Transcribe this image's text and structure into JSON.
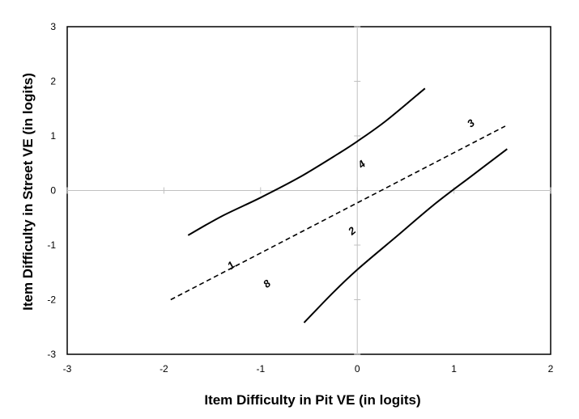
{
  "chart_data": {
    "type": "scatter",
    "xlabel": "Item Difficulty in Pit VE (in logits)",
    "ylabel": "Item Difficulty in Street VE (in logits)",
    "xlim": [
      -3,
      2
    ],
    "ylim": [
      -3,
      3
    ],
    "x_ticks": [
      "-3",
      "-2",
      "-1",
      "0",
      "1",
      "2"
    ],
    "y_ticks": [
      "-3",
      "-2",
      "-1",
      "0",
      "1",
      "2",
      "3"
    ],
    "grid": false,
    "legend": "none",
    "points": [
      {
        "label": "1",
        "x": -1.3,
        "y": -1.38,
        "rotation": -40
      },
      {
        "label": "8",
        "x": -0.93,
        "y": -1.72,
        "rotation": -40
      },
      {
        "label": "2",
        "x": -0.05,
        "y": -0.75,
        "rotation": -40
      },
      {
        "label": "4",
        "x": 0.05,
        "y": 0.47,
        "rotation": -40
      },
      {
        "label": "3",
        "x": 1.18,
        "y": 1.22,
        "rotation": -40
      }
    ],
    "series": [
      {
        "style": "solid",
        "x": [
          -1.75,
          -1.4,
          -1.0,
          -0.6,
          -0.2,
          0.0,
          0.3,
          0.7
        ],
        "y": [
          -0.82,
          -0.47,
          -0.13,
          0.24,
          0.67,
          0.9,
          1.28,
          1.87
        ]
      },
      {
        "style": "dashed",
        "x": [
          -1.93,
          1.53
        ],
        "y": [
          -2.0,
          1.18
        ]
      },
      {
        "style": "solid",
        "x": [
          -0.55,
          -0.25,
          0.0,
          0.4,
          0.8,
          1.2,
          1.55
        ],
        "y": [
          -2.42,
          -1.87,
          -1.45,
          -0.85,
          -0.25,
          0.29,
          0.76
        ]
      }
    ],
    "colors": {
      "line": "#000000",
      "axis": "#c0c0c0",
      "frame": "#000000"
    }
  }
}
